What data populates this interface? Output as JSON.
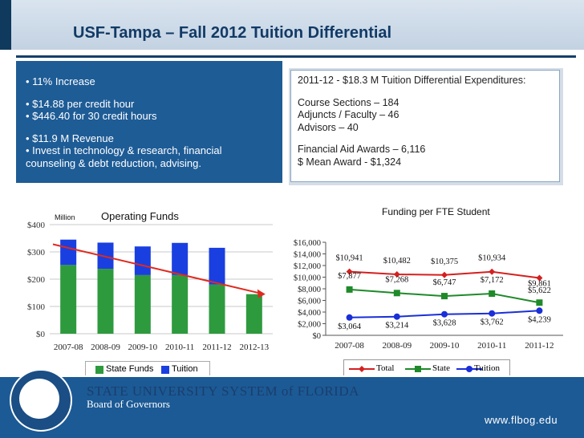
{
  "header": {
    "title": "USF-Tampa – Fall 2012 Tuition Differential"
  },
  "left_box": {
    "lines": [
      "• 11% Increase",
      "• $14.88 per credit hour",
      "• $446.40 for 30 credit hours",
      "• $11.9 M Revenue",
      "• Invest in technology & research, financial",
      "counseling & debt reduction, advising."
    ]
  },
  "right_box": {
    "heading": "2011-12 - $18.3 M Tuition Differential Expenditures:",
    "lines": [
      "Course Sections – 184",
      "Adjuncts / Faculty – 46",
      "Advisors – 40",
      "Financial Aid Awards – 6,116",
      "$ Mean Award - $1,324"
    ]
  },
  "chart_data": [
    {
      "type": "bar",
      "title": "Operating Funds",
      "unit_label": "Million",
      "categories": [
        "2007-08",
        "2008-09",
        "2009-10",
        "2010-11",
        "2011-12",
        "2012-13"
      ],
      "stacked": true,
      "series": [
        {
          "name": "State Funds",
          "color": "#2e9a3e",
          "values": [
            252,
            238,
            215,
            215,
            180,
            145
          ]
        },
        {
          "name": "Tuition",
          "color": "#1a3fe0",
          "values": [
            93,
            96,
            105,
            118,
            135,
            0
          ]
        }
      ],
      "trend": {
        "color": "#e02a1f",
        "from": 328,
        "to": 148
      },
      "y_ticks": [
        "$0",
        "$100",
        "$200",
        "$300",
        "$400"
      ],
      "ylim": [
        0,
        400
      ],
      "legend": "bottom"
    },
    {
      "type": "line",
      "title": "Funding per FTE Student",
      "categories": [
        "2007-08",
        "2008-09",
        "2009-10",
        "2010-11",
        "2011-12"
      ],
      "series": [
        {
          "name": "Total",
          "color": "#d42020",
          "values": [
            10941,
            10482,
            10375,
            10934,
            9861
          ],
          "labels": [
            "$10,941",
            "$10,482",
            "$10,375",
            "$10,934",
            "$9,861"
          ]
        },
        {
          "name": "State",
          "color": "#1f8a2a",
          "values": [
            7877,
            7268,
            6747,
            7172,
            5622
          ],
          "labels": [
            "$7,877",
            "$7,268",
            "$6,747",
            "$7,172",
            "$5,622"
          ]
        },
        {
          "name": "Tuition",
          "color": "#1a2fd8",
          "values": [
            3064,
            3214,
            3628,
            3762,
            4239
          ],
          "labels": [
            "$3,064",
            "$3,214",
            "$3,628",
            "$3,762",
            "$4,239"
          ]
        }
      ],
      "y_ticks": [
        "$0",
        "$2,000",
        "$4,000",
        "$6,000",
        "$8,000",
        "$10,000",
        "$12,000",
        "$14,000",
        "$16,000"
      ],
      "ylim": [
        0,
        16000
      ],
      "legend": "bottom"
    }
  ],
  "footer": {
    "org_line1": "STATE UNIVERSITY SYSTEM of FLORIDA",
    "org_line2": "Board of Governors",
    "url": "www.flbog.edu"
  }
}
